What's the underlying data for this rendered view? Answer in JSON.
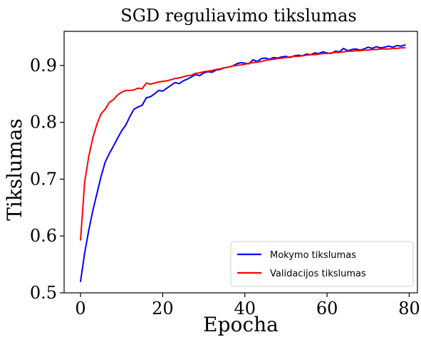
{
  "chart_data": {
    "type": "line",
    "title": "SGD reguliavimo tikslumas",
    "xlabel": "Epocha",
    "ylabel": "Tikslumas",
    "xlim": [
      -4,
      82
    ],
    "ylim": [
      0.5,
      0.96
    ],
    "xticks": [
      0,
      20,
      40,
      60,
      80
    ],
    "xtick_labels": [
      "0",
      "20",
      "40",
      "60",
      "80"
    ],
    "yticks": [
      0.5,
      0.6,
      0.7,
      0.8,
      0.9
    ],
    "ytick_labels": [
      "0.5",
      "0.6",
      "0.7",
      "0.8",
      "0.9"
    ],
    "grid": false,
    "legend_position": "lower-right",
    "x": [
      0,
      1,
      2,
      3,
      4,
      5,
      6,
      7,
      8,
      9,
      10,
      11,
      12,
      13,
      14,
      15,
      16,
      17,
      18,
      19,
      20,
      21,
      22,
      23,
      24,
      25,
      26,
      27,
      28,
      29,
      30,
      31,
      32,
      33,
      34,
      35,
      36,
      37,
      38,
      39,
      40,
      41,
      42,
      43,
      44,
      45,
      46,
      47,
      48,
      49,
      50,
      51,
      52,
      53,
      54,
      55,
      56,
      57,
      58,
      59,
      60,
      61,
      62,
      63,
      64,
      65,
      66,
      67,
      68,
      69,
      70,
      71,
      72,
      73,
      74,
      75,
      76,
      77,
      78,
      79
    ],
    "series": [
      {
        "name": "Mokymo tikslumas",
        "color": "#0000ff",
        "values": [
          0.52,
          0.57,
          0.61,
          0.645,
          0.675,
          0.705,
          0.73,
          0.745,
          0.758,
          0.772,
          0.785,
          0.795,
          0.81,
          0.823,
          0.827,
          0.83,
          0.843,
          0.845,
          0.85,
          0.856,
          0.855,
          0.86,
          0.865,
          0.87,
          0.868,
          0.873,
          0.876,
          0.88,
          0.884,
          0.882,
          0.887,
          0.889,
          0.888,
          0.892,
          0.893,
          0.896,
          0.897,
          0.899,
          0.903,
          0.905,
          0.904,
          0.903,
          0.91,
          0.907,
          0.912,
          0.913,
          0.911,
          0.914,
          0.913,
          0.915,
          0.916,
          0.914,
          0.917,
          0.918,
          0.917,
          0.92,
          0.919,
          0.922,
          0.921,
          0.924,
          0.922,
          0.921,
          0.925,
          0.924,
          0.93,
          0.926,
          0.928,
          0.929,
          0.927,
          0.929,
          0.932,
          0.93,
          0.933,
          0.931,
          0.932,
          0.934,
          0.932,
          0.935,
          0.934,
          0.936
        ]
      },
      {
        "name": "Validacijos tikslumas",
        "color": "#ff0000",
        "values": [
          0.593,
          0.695,
          0.74,
          0.773,
          0.797,
          0.815,
          0.823,
          0.835,
          0.84,
          0.848,
          0.853,
          0.856,
          0.856,
          0.857,
          0.86,
          0.859,
          0.869,
          0.867,
          0.869,
          0.871,
          0.872,
          0.873,
          0.875,
          0.877,
          0.878,
          0.88,
          0.882,
          0.883,
          0.886,
          0.887,
          0.889,
          0.89,
          0.891,
          0.893,
          0.894,
          0.896,
          0.897,
          0.899,
          0.9,
          0.901,
          0.902,
          0.904,
          0.905,
          0.906,
          0.907,
          0.909,
          0.91,
          0.911,
          0.912,
          0.913,
          0.914,
          0.915,
          0.916,
          0.916,
          0.917,
          0.918,
          0.919,
          0.919,
          0.92,
          0.921,
          0.921,
          0.922,
          0.923,
          0.923,
          0.924,
          0.925,
          0.925,
          0.926,
          0.926,
          0.927,
          0.927,
          0.928,
          0.928,
          0.929,
          0.929,
          0.929,
          0.93,
          0.93,
          0.931,
          0.931
        ]
      }
    ]
  }
}
